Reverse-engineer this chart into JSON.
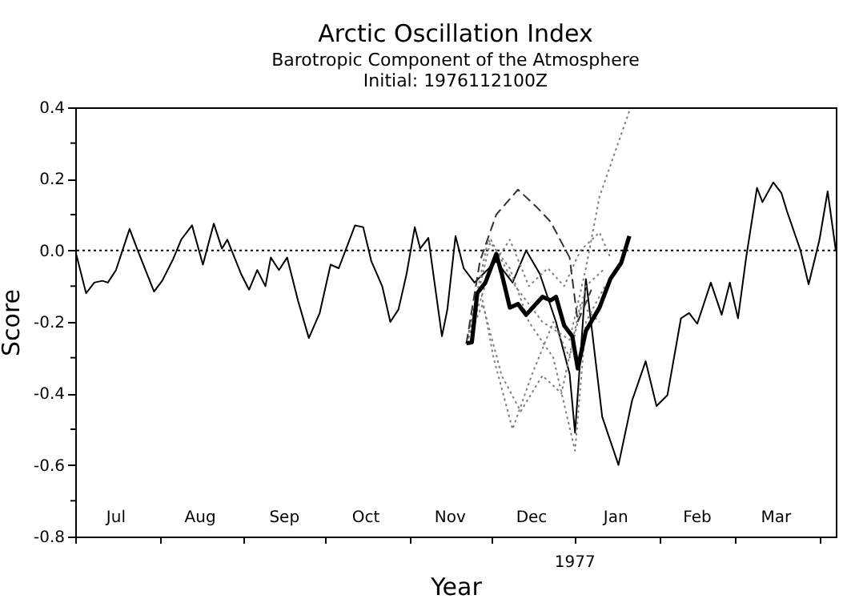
{
  "chart_data": {
    "type": "line",
    "title": "Arctic Oscillation Index",
    "subtitle": "Barotropic Component of the Atmosphere",
    "annotations": [
      "Initial: 1976112100Z",
      "1977"
    ],
    "xlabel": "Year",
    "ylabel": "Score",
    "xlim": [
      "1976-07-01",
      "1977-04-07"
    ],
    "xticks": [
      {
        "value": "1976-07-01",
        "label": null
      },
      {
        "value": "1976-08-01",
        "label": null
      },
      {
        "value": "1976-09-01",
        "label": null
      },
      {
        "value": "1976-10-01",
        "label": null
      },
      {
        "value": "1976-11-01",
        "label": null
      },
      {
        "value": "1976-12-01",
        "label": null
      },
      {
        "value": "1977-01-01",
        "label": null
      },
      {
        "value": "1977-02-01",
        "label": null
      },
      {
        "value": "1977-03-01",
        "label": null
      },
      {
        "value": "1977-04-01",
        "label": null
      },
      {
        "value": "1976-07-16",
        "label": "Jul"
      },
      {
        "value": "1976-08-16",
        "label": "Aug"
      },
      {
        "value": "1976-09-16",
        "label": "Sep"
      },
      {
        "value": "1976-10-16",
        "label": "Oct"
      },
      {
        "value": "1976-11-16",
        "label": "Nov"
      },
      {
        "value": "1976-12-16",
        "label": "Dec"
      },
      {
        "value": "1977-01-16",
        "label": "Jan"
      },
      {
        "value": "1977-02-15",
        "label": "Feb"
      },
      {
        "value": "1977-03-16",
        "label": "Mar"
      }
    ],
    "ylim": [
      -0.8,
      0.4
    ],
    "yticks": [
      {
        "value": -0.8,
        "label": "-0.8"
      },
      {
        "value": -0.7,
        "label": null
      },
      {
        "value": -0.6,
        "label": "-0.6"
      },
      {
        "value": -0.5,
        "label": null
      },
      {
        "value": -0.4,
        "label": "-0.4"
      },
      {
        "value": -0.3,
        "label": null
      },
      {
        "value": -0.2,
        "label": "-0.2"
      },
      {
        "value": -0.1,
        "label": null
      },
      {
        "value": 0,
        "label": "0.0"
      },
      {
        "value": 0.1,
        "label": null
      },
      {
        "value": 0.2,
        "label": "0.2"
      },
      {
        "value": 0.3,
        "label": null
      },
      {
        "value": 0.4,
        "label": "0.4"
      }
    ],
    "ref_lines": [
      {
        "axis": "y",
        "value": 0,
        "label": null,
        "color": "#000000",
        "line_style": "dotted"
      }
    ],
    "series": [
      {
        "color": "#000000",
        "line_style": "solid",
        "x": [
          "1976-07-01",
          "1976-07-05",
          "1976-07-08",
          "1976-07-11",
          "1976-07-13",
          "1976-07-16",
          "1976-07-21",
          "1976-07-24",
          "1976-07-30",
          "1976-08-02",
          "1976-08-06",
          "1976-08-09",
          "1976-08-13",
          "1976-08-17",
          "1976-08-21",
          "1976-08-24",
          "1976-08-26",
          "1976-08-31",
          "1976-09-03",
          "1976-09-06",
          "1976-09-09",
          "1976-09-11",
          "1976-09-14",
          "1976-09-17",
          "1976-09-21",
          "1976-09-25",
          "1976-09-29",
          "1976-10-03",
          "1976-10-06",
          "1976-10-12",
          "1976-10-15",
          "1976-10-18",
          "1976-10-22",
          "1976-10-25",
          "1976-10-28",
          "1976-10-31",
          "1976-11-03",
          "1976-11-05",
          "1976-11-08",
          "1976-11-13",
          "1976-11-15",
          "1976-11-18",
          "1976-11-21",
          "1976-11-25",
          "1976-12-03",
          "1976-12-09",
          "1976-12-14",
          "1976-12-19",
          "1976-12-25",
          "1976-12-30",
          "1977-01-01",
          "1977-01-05",
          "1977-01-11",
          "1977-01-17",
          "1977-01-22",
          "1977-01-27",
          "1977-01-31",
          "1977-02-04",
          "1977-02-09",
          "1977-02-12",
          "1977-02-15",
          "1977-02-20",
          "1977-02-24",
          "1977-02-27",
          "1977-03-02",
          "1977-03-05",
          "1977-03-09",
          "1977-03-11",
          "1977-03-15",
          "1977-03-18",
          "1977-03-20",
          "1977-03-25",
          "1977-03-28",
          "1977-04-01",
          "1977-04-04",
          "1977-04-07"
        ],
        "values": [
          0.0,
          -0.12,
          -0.09,
          -0.085,
          -0.09,
          -0.055,
          0.06,
          0.0,
          -0.115,
          -0.085,
          -0.025,
          0.03,
          0.07,
          -0.04,
          0.075,
          0.005,
          0.03,
          -0.065,
          -0.11,
          -0.055,
          -0.1,
          -0.02,
          -0.055,
          -0.02,
          -0.14,
          -0.245,
          -0.175,
          -0.04,
          -0.05,
          0.07,
          0.065,
          -0.03,
          -0.1,
          -0.2,
          -0.165,
          -0.065,
          0.065,
          0.005,
          0.035,
          -0.24,
          -0.165,
          0.04,
          -0.05,
          -0.09,
          -0.03,
          -0.09,
          0.0,
          -0.065,
          -0.2,
          -0.345,
          -0.51,
          -0.08,
          -0.465,
          -0.6,
          -0.42,
          -0.31,
          -0.435,
          -0.405,
          -0.19,
          -0.175,
          -0.205,
          -0.09,
          -0.18,
          -0.09,
          -0.19,
          -0.02,
          0.175,
          0.135,
          0.19,
          0.16,
          0.11,
          0.0,
          -0.095,
          0.03,
          0.165,
          0.0
        ]
      },
      {
        "color": "#808080",
        "line_style": "dotted",
        "x": [
          "1976-11-22",
          "1976-12-01",
          "1976-12-10",
          "1976-12-20",
          "1976-12-30",
          "1977-01-05",
          "1977-01-10",
          "1977-01-21"
        ],
        "values": [
          -0.26,
          0.03,
          -0.1,
          -0.2,
          -0.25,
          -0.05,
          0.15,
          0.39
        ]
      },
      {
        "color": "#808080",
        "line_style": "dotted",
        "x": [
          "1976-11-22",
          "1976-11-27",
          "1976-12-02",
          "1976-12-09",
          "1976-12-16",
          "1976-12-24",
          "1976-12-30",
          "1977-01-05",
          "1977-01-12"
        ],
        "values": [
          -0.26,
          -0.1,
          -0.3,
          -0.5,
          -0.35,
          -0.2,
          -0.3,
          -0.1,
          -0.05
        ]
      },
      {
        "color": "#808080",
        "line_style": "dotted",
        "x": [
          "1976-11-22",
          "1976-11-30",
          "1976-12-08",
          "1976-12-15",
          "1976-12-24",
          "1977-01-01",
          "1977-01-05",
          "1977-01-12"
        ],
        "values": [
          -0.26,
          0.03,
          -0.05,
          -0.2,
          -0.3,
          -0.56,
          -0.2,
          -0.1
        ]
      },
      {
        "color": "#808080",
        "line_style": "dotted",
        "x": [
          "1976-11-22",
          "1976-12-01",
          "1976-12-08",
          "1976-12-15",
          "1976-12-22",
          "1976-12-28",
          "1977-01-03",
          "1977-01-10",
          "1977-01-14"
        ],
        "values": [
          -0.26,
          -0.05,
          0.03,
          -0.1,
          -0.05,
          -0.1,
          0.0,
          0.05,
          -0.02
        ]
      },
      {
        "color": "#808080",
        "line_style": "dotted",
        "x": [
          "1976-11-22",
          "1976-11-28",
          "1976-12-05",
          "1976-12-12",
          "1976-12-20",
          "1976-12-27",
          "1977-01-03",
          "1977-01-10"
        ],
        "values": [
          -0.26,
          -0.15,
          -0.35,
          -0.45,
          -0.35,
          -0.4,
          -0.15,
          -0.2
        ]
      },
      {
        "color": "#333333",
        "line_style": "dashed",
        "x": [
          "1976-11-22",
          "1976-11-27",
          "1976-12-03",
          "1976-12-11",
          "1976-12-18",
          "1976-12-23",
          "1976-12-30",
          "1977-01-02",
          "1977-01-07"
        ],
        "values": [
          -0.26,
          -0.03,
          0.1,
          0.17,
          0.12,
          0.08,
          -0.02,
          -0.2,
          -0.11
        ]
      },
      {
        "color": "#000000",
        "line_style": "solid",
        "x": [
          "1976-11-22",
          "1976-11-24",
          "1976-11-26",
          "1976-11-29",
          "1976-12-03",
          "1976-12-05",
          "1976-12-08",
          "1976-12-11",
          "1976-12-14",
          "1976-12-20",
          "1976-12-23",
          "1976-12-25",
          "1976-12-28",
          "1976-12-31",
          "1977-01-02",
          "1977-01-05",
          "1977-01-10",
          "1977-01-14",
          "1977-01-18",
          "1977-01-21"
        ],
        "values": [
          -0.26,
          -0.257,
          -0.12,
          -0.09,
          -0.01,
          -0.065,
          -0.16,
          -0.15,
          -0.18,
          -0.13,
          -0.14,
          -0.13,
          -0.21,
          -0.24,
          -0.33,
          -0.225,
          -0.16,
          -0.08,
          -0.035,
          0.04
        ]
      }
    ]
  }
}
